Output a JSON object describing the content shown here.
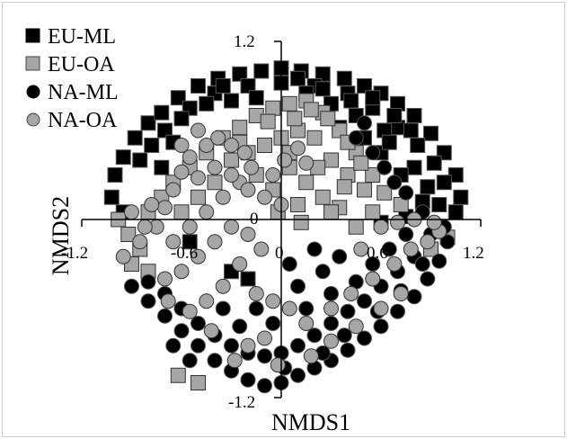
{
  "chart_data": {
    "type": "scatter",
    "title": "",
    "xlabel": "NMDS1",
    "ylabel": "NMDS2",
    "xlim": [
      -1.2,
      1.2
    ],
    "ylim": [
      -1.2,
      1.2
    ],
    "x_ticks": [
      "-1.2",
      "-0.6",
      "0",
      "0.6",
      "1.2"
    ],
    "y_ticks": [
      "1.2",
      "0",
      "-1.2"
    ],
    "grid": false,
    "legend_position": "top-left",
    "series": [
      {
        "name": "EU-ML",
        "marker": "square",
        "color": "#000000",
        "points": [
          [
            -0.95,
            0.42
          ],
          [
            -0.88,
            0.55
          ],
          [
            -0.8,
            0.65
          ],
          [
            -0.72,
            0.72
          ],
          [
            -0.62,
            0.82
          ],
          [
            -0.5,
            0.9
          ],
          [
            -0.38,
            0.95
          ],
          [
            -0.25,
            0.98
          ],
          [
            -0.12,
            1.0
          ],
          [
            0.0,
            1.02
          ],
          [
            0.12,
            1.0
          ],
          [
            0.25,
            0.98
          ],
          [
            0.38,
            0.95
          ],
          [
            0.5,
            0.9
          ],
          [
            0.6,
            0.85
          ],
          [
            0.7,
            0.78
          ],
          [
            0.8,
            0.7
          ],
          [
            0.9,
            0.58
          ],
          [
            0.98,
            0.45
          ],
          [
            1.05,
            0.3
          ],
          [
            1.08,
            0.15
          ],
          [
            1.05,
            0.05
          ],
          [
            -1.0,
            0.3
          ],
          [
            -1.02,
            0.15
          ],
          [
            -0.95,
            0.05
          ],
          [
            -0.7,
            0.6
          ],
          [
            -0.55,
            0.75
          ],
          [
            -0.4,
            0.85
          ],
          [
            -0.2,
            0.9
          ],
          [
            0.0,
            0.92
          ],
          [
            0.2,
            0.9
          ],
          [
            0.4,
            0.85
          ],
          [
            0.55,
            0.75
          ],
          [
            0.7,
            0.62
          ],
          [
            0.82,
            0.5
          ],
          [
            0.92,
            0.38
          ],
          [
            0.98,
            0.25
          ],
          [
            -0.85,
            0.4
          ],
          [
            -0.78,
            0.5
          ],
          [
            -0.6,
            0.68
          ],
          [
            -0.3,
            0.8
          ],
          [
            0.3,
            0.78
          ],
          [
            0.62,
            0.6
          ],
          [
            0.8,
            0.35
          ],
          [
            0.88,
            0.22
          ],
          [
            0.5,
            0.55
          ],
          [
            0.6,
            0.45
          ],
          [
            0.72,
            0.3
          ],
          [
            0.45,
            0.7
          ],
          [
            0.15,
            0.85
          ],
          [
            -0.15,
            0.82
          ],
          [
            0.35,
            0.62
          ],
          [
            0.65,
            0.52
          ],
          [
            0.85,
            0.12
          ],
          [
            0.95,
            0.1
          ],
          [
            -0.55,
            -0.15
          ],
          [
            -0.3,
            -0.35
          ],
          [
            -0.2,
            -0.4
          ],
          [
            0.6,
            -0.02
          ],
          [
            0.75,
            0.02
          ],
          [
            -0.72,
            0.35
          ],
          [
            -0.65,
            0.52
          ],
          [
            0.25,
            0.88
          ],
          [
            0.42,
            0.8
          ],
          [
            0.1,
            0.95
          ],
          [
            -0.45,
            0.78
          ],
          [
            -0.35,
            0.9
          ],
          [
            0.55,
            0.82
          ],
          [
            0.78,
            0.6
          ],
          [
            0.68,
            0.7
          ]
        ]
      },
      {
        "name": "EU-OA",
        "marker": "square",
        "color": "#a6a6a6",
        "points": [
          [
            -0.98,
            0.0
          ],
          [
            -0.92,
            -0.1
          ],
          [
            -0.85,
            -0.2
          ],
          [
            -0.8,
            0.05
          ],
          [
            -0.72,
            0.15
          ],
          [
            -0.65,
            0.25
          ],
          [
            -0.55,
            0.35
          ],
          [
            -0.45,
            0.45
          ],
          [
            -0.35,
            0.55
          ],
          [
            -0.25,
            0.62
          ],
          [
            -0.15,
            0.7
          ],
          [
            -0.05,
            0.75
          ],
          [
            0.05,
            0.78
          ],
          [
            0.15,
            0.8
          ],
          [
            0.25,
            0.72
          ],
          [
            0.35,
            0.6
          ],
          [
            0.45,
            0.45
          ],
          [
            0.55,
            0.3
          ],
          [
            0.62,
            0.18
          ],
          [
            0.2,
            0.55
          ],
          [
            0.1,
            0.6
          ],
          [
            0.0,
            0.55
          ],
          [
            -0.1,
            0.5
          ],
          [
            -0.2,
            0.45
          ],
          [
            0.3,
            0.4
          ],
          [
            0.4,
            0.3
          ],
          [
            0.5,
            0.2
          ],
          [
            0.05,
            0.35
          ],
          [
            0.15,
            0.25
          ],
          [
            0.25,
            0.15
          ],
          [
            0.35,
            0.08
          ],
          [
            -0.05,
            0.2
          ],
          [
            -0.15,
            0.3
          ],
          [
            -0.3,
            0.4
          ],
          [
            0.1,
            0.1
          ],
          [
            1.0,
            -0.12
          ],
          [
            0.9,
            -0.2
          ],
          [
            0.05,
            0.45
          ],
          [
            0.22,
            0.35
          ],
          [
            0.38,
            0.22
          ],
          [
            -0.02,
            0.05
          ],
          [
            0.12,
            -0.02
          ],
          [
            -0.4,
            0.25
          ],
          [
            -0.5,
            0.15
          ],
          [
            -0.6,
            0.05
          ],
          [
            0.48,
            0.38
          ],
          [
            0.28,
            0.68
          ],
          [
            0.18,
            0.74
          ],
          [
            -0.08,
            0.66
          ],
          [
            0.4,
            0.52
          ],
          [
            -0.9,
            -0.3
          ],
          [
            -0.8,
            -0.35
          ],
          [
            -0.62,
            -1.05
          ],
          [
            -0.5,
            -1.1
          ],
          [
            0.55,
            0.05
          ],
          [
            0.72,
            0.1
          ],
          [
            0.08,
            0.68
          ],
          [
            -0.25,
            0.52
          ],
          [
            0.3,
            0.05
          ],
          [
            0.45,
            -0.05
          ]
        ]
      },
      {
        "name": "NA-ML",
        "marker": "circle",
        "color": "#000000",
        "points": [
          [
            -0.9,
            -0.45
          ],
          [
            -0.8,
            -0.55
          ],
          [
            -0.7,
            -0.65
          ],
          [
            -0.6,
            -0.75
          ],
          [
            -0.5,
            -0.85
          ],
          [
            -0.4,
            -0.95
          ],
          [
            -0.3,
            -1.02
          ],
          [
            -0.2,
            -1.08
          ],
          [
            -0.1,
            -1.12
          ],
          [
            0.0,
            -1.1
          ],
          [
            0.1,
            -1.05
          ],
          [
            0.2,
            -1.0
          ],
          [
            0.3,
            -0.95
          ],
          [
            0.4,
            -0.88
          ],
          [
            0.5,
            -0.8
          ],
          [
            0.6,
            -0.72
          ],
          [
            0.7,
            -0.62
          ],
          [
            0.8,
            -0.52
          ],
          [
            0.88,
            -0.4
          ],
          [
            0.95,
            -0.28
          ],
          [
            1.0,
            -0.15
          ],
          [
            0.98,
            -0.05
          ],
          [
            0.9,
            -0.1
          ],
          [
            0.8,
            -0.25
          ],
          [
            0.7,
            -0.35
          ],
          [
            0.6,
            -0.45
          ],
          [
            0.5,
            -0.55
          ],
          [
            0.4,
            -0.62
          ],
          [
            0.3,
            -0.7
          ],
          [
            0.2,
            -0.78
          ],
          [
            0.1,
            -0.85
          ],
          [
            0.0,
            -0.9
          ],
          [
            -0.1,
            -0.92
          ],
          [
            -0.2,
            -0.9
          ],
          [
            -0.3,
            -0.85
          ],
          [
            -0.4,
            -0.78
          ],
          [
            -0.5,
            -0.7
          ],
          [
            -0.6,
            -0.6
          ],
          [
            -0.7,
            -0.5
          ],
          [
            -0.8,
            -0.42
          ],
          [
            0.15,
            -0.6
          ],
          [
            0.3,
            -0.5
          ],
          [
            0.45,
            -0.42
          ],
          [
            0.55,
            -0.3
          ],
          [
            0.65,
            -0.2
          ],
          [
            0.75,
            -0.1
          ],
          [
            0.25,
            -0.35
          ],
          [
            0.35,
            -0.25
          ],
          [
            -0.05,
            -0.7
          ],
          [
            -0.15,
            -0.6
          ],
          [
            0.45,
            0.55
          ],
          [
            0.5,
            0.65
          ],
          [
            0.55,
            0.45
          ],
          [
            0.62,
            0.35
          ],
          [
            0.68,
            0.25
          ],
          [
            0.75,
            0.18
          ],
          [
            0.85,
            0.05
          ],
          [
            0.1,
            -0.45
          ],
          [
            0.2,
            -0.2
          ],
          [
            0.05,
            -0.3
          ],
          [
            -0.25,
            -0.72
          ],
          [
            -0.35,
            -0.6
          ],
          [
            0.58,
            -0.62
          ],
          [
            0.72,
            -0.48
          ],
          [
            0.85,
            -0.3
          ],
          [
            -0.65,
            -0.85
          ],
          [
            -0.55,
            -0.95
          ],
          [
            0.25,
            -0.9
          ],
          [
            0.38,
            -0.78
          ],
          [
            0.02,
            -1.0
          ]
        ]
      },
      {
        "name": "NA-OA",
        "marker": "circle",
        "color": "#a6a6a6",
        "points": [
          [
            -0.95,
            -0.25
          ],
          [
            -0.85,
            -0.15
          ],
          [
            -0.75,
            -0.05
          ],
          [
            -0.7,
            0.08
          ],
          [
            -0.65,
            0.2
          ],
          [
            -0.6,
            0.32
          ],
          [
            -0.55,
            0.42
          ],
          [
            -0.45,
            0.5
          ],
          [
            -0.38,
            0.55
          ],
          [
            -0.3,
            0.5
          ],
          [
            -0.22,
            0.45
          ],
          [
            -0.18,
            0.35
          ],
          [
            -0.25,
            0.25
          ],
          [
            -0.35,
            0.15
          ],
          [
            -0.45,
            0.05
          ],
          [
            -0.55,
            -0.05
          ],
          [
            -0.65,
            -0.15
          ],
          [
            -0.5,
            0.28
          ],
          [
            -0.4,
            0.35
          ],
          [
            -0.3,
            0.3
          ],
          [
            -0.2,
            0.2
          ],
          [
            -0.1,
            0.15
          ],
          [
            0.0,
            0.1
          ],
          [
            -0.05,
            0.3
          ],
          [
            0.02,
            0.4
          ],
          [
            0.1,
            0.48
          ],
          [
            0.15,
            0.38
          ],
          [
            -0.6,
            -0.35
          ],
          [
            -0.7,
            -0.4
          ],
          [
            -0.5,
            -0.25
          ],
          [
            -0.4,
            -0.15
          ],
          [
            -0.3,
            -0.05
          ],
          [
            -0.2,
            -0.1
          ],
          [
            -0.12,
            -0.2
          ],
          [
            -0.25,
            -0.3
          ],
          [
            -0.35,
            -0.45
          ],
          [
            -0.45,
            -0.55
          ],
          [
            -0.15,
            -0.5
          ],
          [
            -0.05,
            -0.55
          ],
          [
            0.05,
            -0.6
          ],
          [
            0.15,
            -0.7
          ],
          [
            -0.1,
            -0.8
          ],
          [
            -0.2,
            -0.85
          ],
          [
            0.3,
            -0.6
          ],
          [
            0.42,
            -0.5
          ],
          [
            0.55,
            -0.4
          ],
          [
            0.68,
            -0.3
          ],
          [
            0.78,
            -0.2
          ],
          [
            0.88,
            -0.15
          ],
          [
            0.95,
            -0.08
          ],
          [
            0.6,
            -0.05
          ],
          [
            0.7,
            -0.02
          ],
          [
            0.8,
            0.0
          ],
          [
            0.92,
            -0.02
          ],
          [
            0.48,
            -0.2
          ],
          [
            -0.78,
            0.1
          ],
          [
            -0.82,
            -0.05
          ],
          [
            -0.9,
            0.05
          ],
          [
            -0.6,
            0.5
          ],
          [
            -0.5,
            0.6
          ],
          [
            0.3,
            -0.82
          ],
          [
            0.45,
            -0.72
          ],
          [
            0.6,
            -0.6
          ],
          [
            0.72,
            -0.5
          ],
          [
            -0.28,
            -0.95
          ],
          [
            -0.02,
            -0.98
          ],
          [
            0.18,
            -0.92
          ],
          [
            -0.42,
            -0.75
          ],
          [
            -0.55,
            -0.62
          ],
          [
            -0.68,
            -0.55
          ]
        ]
      }
    ]
  }
}
